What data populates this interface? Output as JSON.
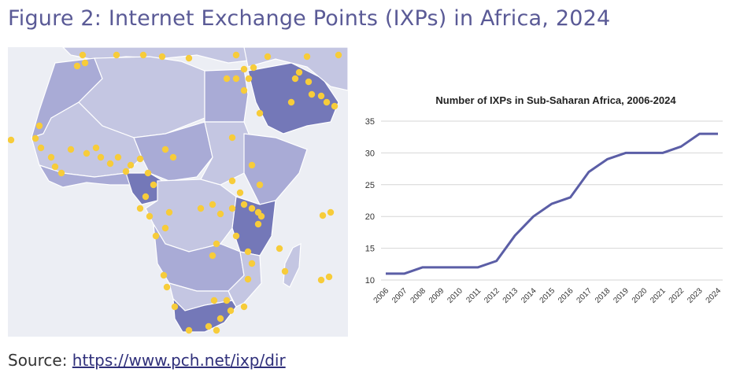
{
  "figure": {
    "title": "Figure 2: Internet Exchange Points (IXPs) in Africa, 2024",
    "source_label": "Source:",
    "source_link": "https://www.pch.net/ixp/dir"
  },
  "map": {
    "colors": {
      "background": "#eceef4",
      "land_light": "#c4c6e2",
      "land_medium": "#a9abd6",
      "land_dark": "#7478b8",
      "border": "#ffffff",
      "ixp_dot": "#f7cc3a"
    },
    "ixp_marker_icon": "circle-dot-icon"
  },
  "chart_data": {
    "type": "line",
    "title": "Number of IXPs in Sub-Saharan Africa, 2006-2024",
    "xlabel": "",
    "ylabel": "",
    "categories": [
      "2006",
      "2007",
      "2008",
      "2009",
      "2010",
      "2011",
      "2012",
      "2013",
      "2014",
      "2015",
      "2016",
      "2017",
      "2018",
      "2019",
      "2020",
      "2021",
      "2022",
      "2023",
      "2024"
    ],
    "series": [
      {
        "values": [
          11,
          11,
          12,
          12,
          12,
          12,
          13,
          17,
          20,
          22,
          23,
          27,
          29,
          30,
          30,
          30,
          31,
          33,
          33
        ]
      }
    ],
    "y_ticks": [
      "10",
      "15",
      "20",
      "25",
      "30",
      "35"
    ],
    "ylim": [
      10,
      35
    ],
    "grid": true,
    "legend": "none",
    "line_color": "#5b5ea6",
    "grid_color": "#d6d6d6"
  }
}
